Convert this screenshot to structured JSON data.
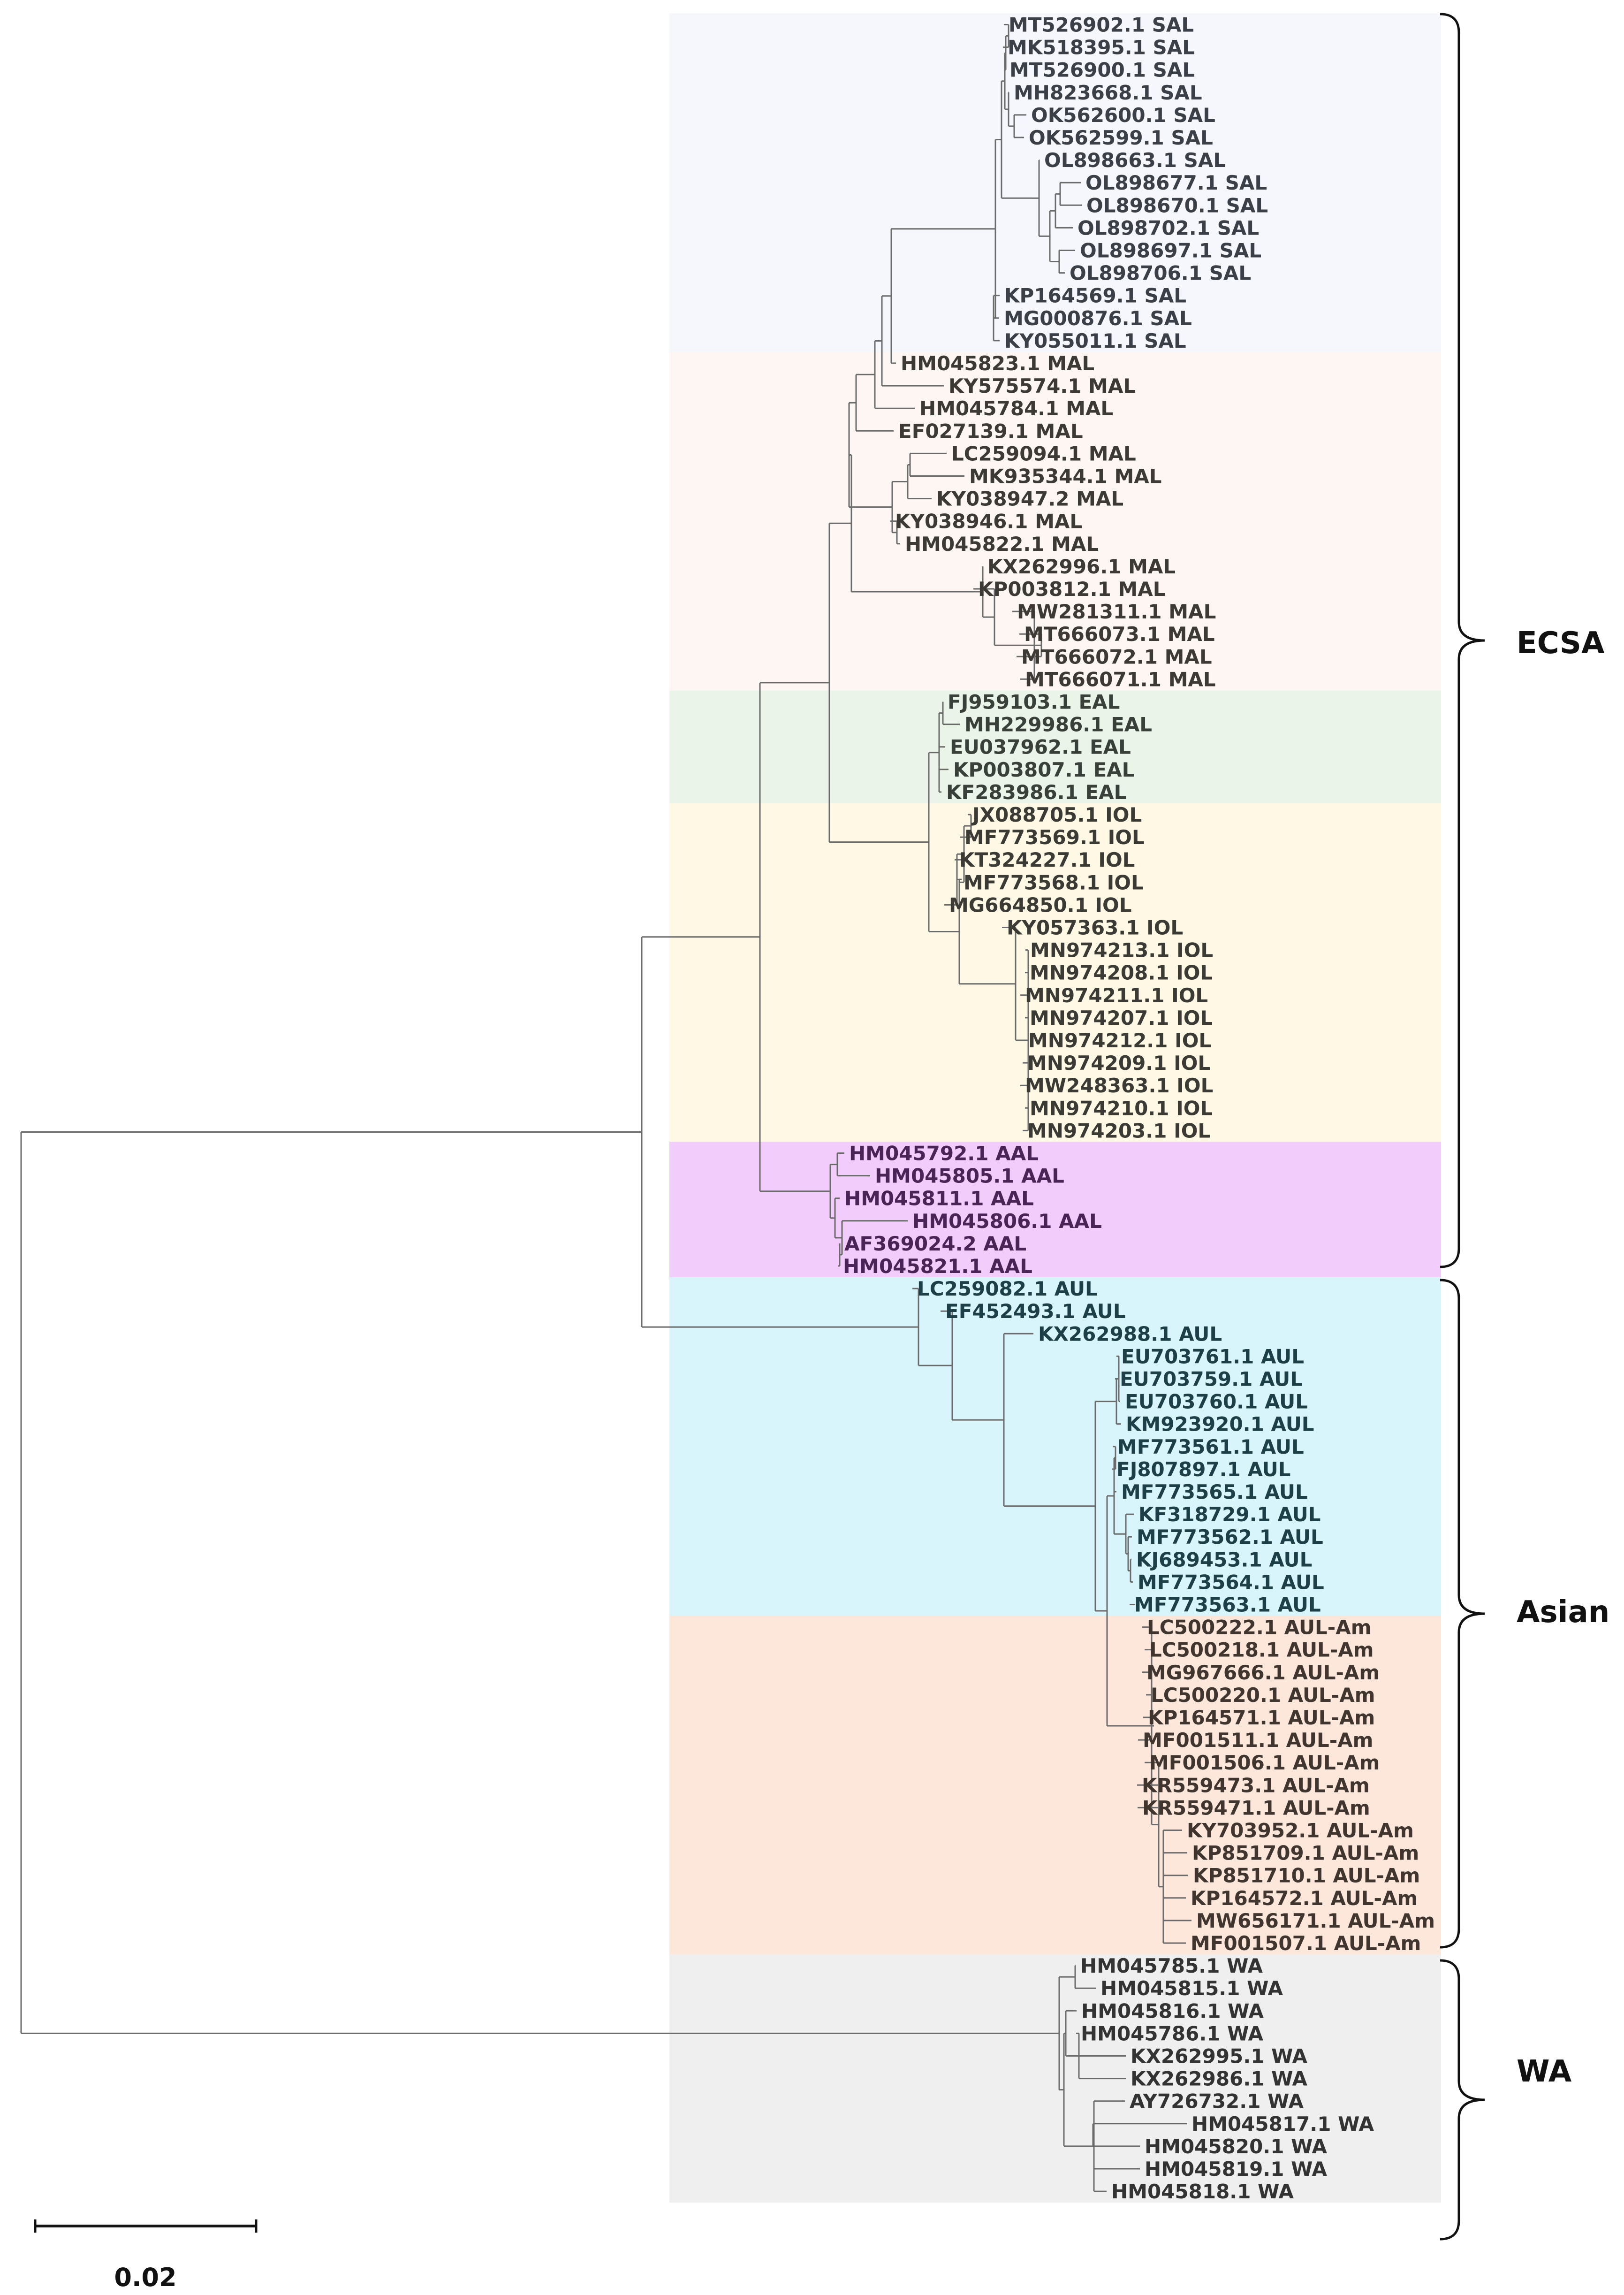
{
  "scale_bar": {
    "label": "0.02"
  },
  "clades": [
    {
      "label": "ECSA"
    },
    {
      "label": "Asian"
    },
    {
      "label": "WA"
    }
  ],
  "bands": [
    {
      "name": "SAL",
      "color": "#f5f7fd"
    },
    {
      "name": "MAL",
      "color": "#fdf6f3"
    },
    {
      "name": "EAL",
      "color": "#eaf4e8"
    },
    {
      "name": "IOL",
      "color": "#fff8e4"
    },
    {
      "name": "AAL",
      "color": "#f2ccfb"
    },
    {
      "name": "AUL",
      "color": "#d7f5fb"
    },
    {
      "name": "AUL-Am",
      "color": "#fde6da"
    },
    {
      "name": "WA",
      "color": "#efefef"
    }
  ],
  "taxa": [
    "MT526902.1 SAL",
    "MK518395.1 SAL",
    "MT526900.1 SAL",
    "MH823668.1 SAL",
    "OK562600.1 SAL",
    "OK562599.1 SAL",
    "OL898663.1 SAL",
    "OL898677.1 SAL",
    "OL898670.1 SAL",
    "OL898702.1 SAL",
    "OL898697.1 SAL",
    "OL898706.1 SAL",
    "KP164569.1 SAL",
    "MG000876.1 SAL",
    "KY055011.1 SAL",
    "HM045823.1 MAL",
    "KY575574.1 MAL",
    "HM045784.1 MAL",
    "EF027139.1 MAL",
    "LC259094.1 MAL",
    "MK935344.1 MAL",
    "KY038947.2 MAL",
    "KY038946.1 MAL",
    "HM045822.1 MAL",
    "KX262996.1 MAL",
    "KP003812.1 MAL",
    "MW281311.1 MAL",
    "MT666073.1 MAL",
    "MT666072.1 MAL",
    "MT666071.1 MAL",
    "FJ959103.1 EAL",
    "MH229986.1 EAL",
    "EU037962.1 EAL",
    "KP003807.1 EAL",
    "KF283986.1 EAL",
    "JX088705.1 IOL",
    "MF773569.1 IOL",
    "KT324227.1 IOL",
    "MF773568.1 IOL",
    "MG664850.1 IOL",
    "KY057363.1 IOL",
    "MN974213.1 IOL",
    "MN974208.1 IOL",
    "MN974211.1 IOL",
    "MN974207.1 IOL",
    "MN974212.1 IOL",
    "MN974209.1 IOL",
    "MW248363.1 IOL",
    "MN974210.1 IOL",
    "MN974203.1 IOL",
    "HM045792.1 AAL",
    "HM045805.1 AAL",
    "HM045811.1 AAL",
    "HM045806.1 AAL",
    "AF369024.2 AAL",
    "HM045821.1 AAL",
    "LC259082.1 AUL",
    "EF452493.1 AUL",
    "KX262988.1 AUL",
    "EU703761.1 AUL",
    "EU703759.1 AUL",
    "EU703760.1 AUL",
    "KM923920.1 AUL",
    "MF773561.1 AUL",
    "FJ807897.1 AUL",
    "MF773565.1 AUL",
    "KF318729.1 AUL",
    "MF773562.1 AUL",
    "KJ689453.1 AUL",
    "MF773564.1 AUL",
    "MF773563.1 AUL",
    "LC500222.1 AUL-Am",
    "LC500218.1 AUL-Am",
    "MG967666.1 AUL-Am",
    "LC500220.1 AUL-Am",
    "KP164571.1 AUL-Am",
    "MF001511.1 AUL-Am",
    "MF001506.1 AUL-Am",
    "KR559473.1 AUL-Am",
    "KR559471.1 AUL-Am",
    "KY703952.1 AUL-Am",
    "KP851709.1 AUL-Am",
    "KP851710.1 AUL-Am",
    "KP164572.1 AUL-Am",
    "MW656171.1 AUL-Am",
    "MF001507.1 AUL-Am",
    "HM045785.1 WA",
    "HM045815.1 WA",
    "HM045816.1 WA",
    "HM045786.1 WA",
    "KX262995.1 WA",
    "KX262986.1 WA",
    "AY726732.1 WA",
    "HM045817.1 WA",
    "HM045820.1 WA",
    "HM045819.1 WA",
    "HM045818.1 WA"
  ]
}
